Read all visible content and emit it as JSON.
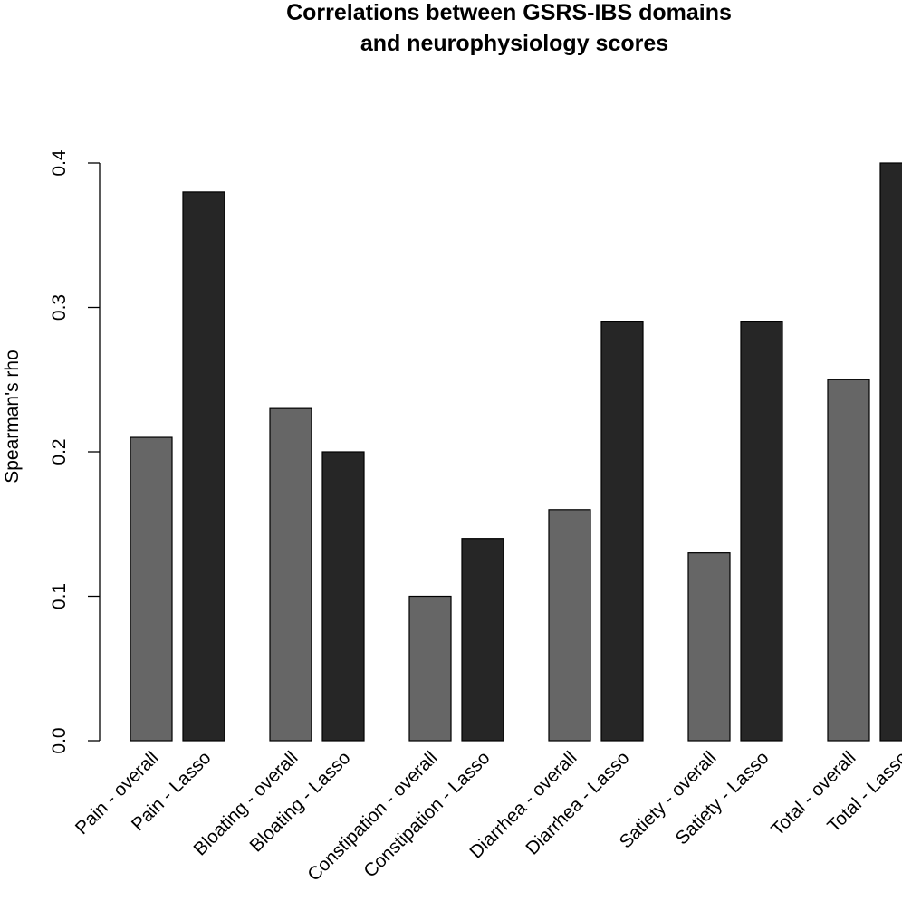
{
  "chart_data": {
    "type": "bar",
    "title_lines": [
      "Correlations between GSRS-IBS domains",
      "and neurophysiology scores"
    ],
    "xlabel": "",
    "ylabel": "Spearman's rho",
    "ylim": [
      0,
      0.4
    ],
    "yticks": [
      {
        "value": 0.0,
        "label": "0.0"
      },
      {
        "value": 0.1,
        "label": "0.1"
      },
      {
        "value": 0.2,
        "label": "0.2"
      },
      {
        "value": 0.3,
        "label": "0.3"
      },
      {
        "value": 0.4,
        "label": "0.4"
      }
    ],
    "grid": false,
    "legend": "none",
    "bars": [
      {
        "label": "Pain - overall",
        "value": 0.21,
        "group": "overall"
      },
      {
        "label": "Pain - Lasso",
        "value": 0.38,
        "group": "Lasso"
      },
      {
        "label": "Bloating - overall",
        "value": 0.23,
        "group": "overall"
      },
      {
        "label": "Bloating - Lasso",
        "value": 0.2,
        "group": "Lasso"
      },
      {
        "label": "Constipation - overall",
        "value": 0.1,
        "group": "overall"
      },
      {
        "label": "Constipation - Lasso",
        "value": 0.14,
        "group": "Lasso"
      },
      {
        "label": "Diarrhea - overall",
        "value": 0.16,
        "group": "overall"
      },
      {
        "label": "Diarrhea - Lasso",
        "value": 0.29,
        "group": "Lasso"
      },
      {
        "label": "Satiety - overall",
        "value": 0.13,
        "group": "overall"
      },
      {
        "label": "Satiety - Lasso",
        "value": 0.29,
        "group": "Lasso"
      },
      {
        "label": "Total - overall",
        "value": 0.25,
        "group": "overall"
      },
      {
        "label": "Total - Lasso",
        "value": 0.4,
        "group": "Lasso"
      }
    ],
    "colors": {
      "overall": "#666666",
      "Lasso": "#262626",
      "outline": "#000000"
    }
  }
}
